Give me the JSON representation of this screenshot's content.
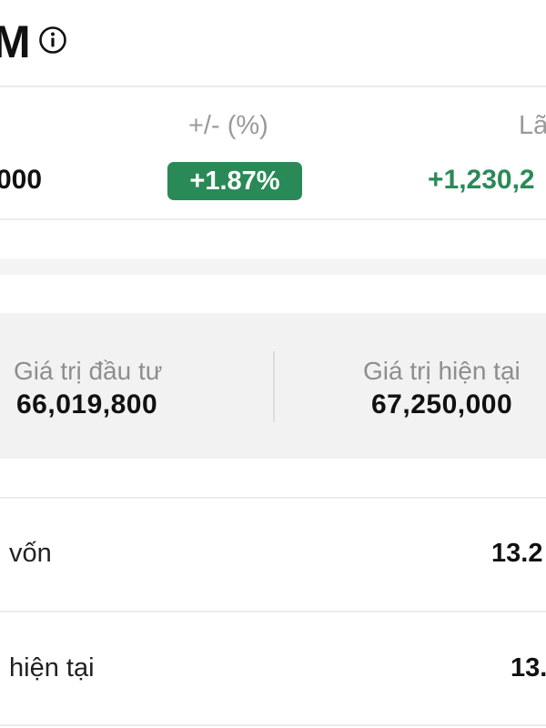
{
  "header": {
    "title_fragment": "M",
    "info_icon": "info-circle-icon"
  },
  "summary": {
    "change_pct_header": "+/- (%)",
    "pl_header_fragment": "Lã",
    "left_value_fragment": "000",
    "change_pct_value": "+1.87%",
    "pl_value_fragment": "+1,230,2"
  },
  "investment_card": {
    "invested_label": "Giá trị đầu tư",
    "invested_value": "66,019,800",
    "current_label": "Giá trị hiện tại",
    "current_value": "67,250,000"
  },
  "rows": [
    {
      "label": "vốn",
      "value": "13.2"
    },
    {
      "label": "hiện tại",
      "value": "13."
    }
  ],
  "colors": {
    "positive_green": "#2a8a57",
    "muted_text": "#9a9a9a",
    "card_bg": "#f2f2f2"
  }
}
